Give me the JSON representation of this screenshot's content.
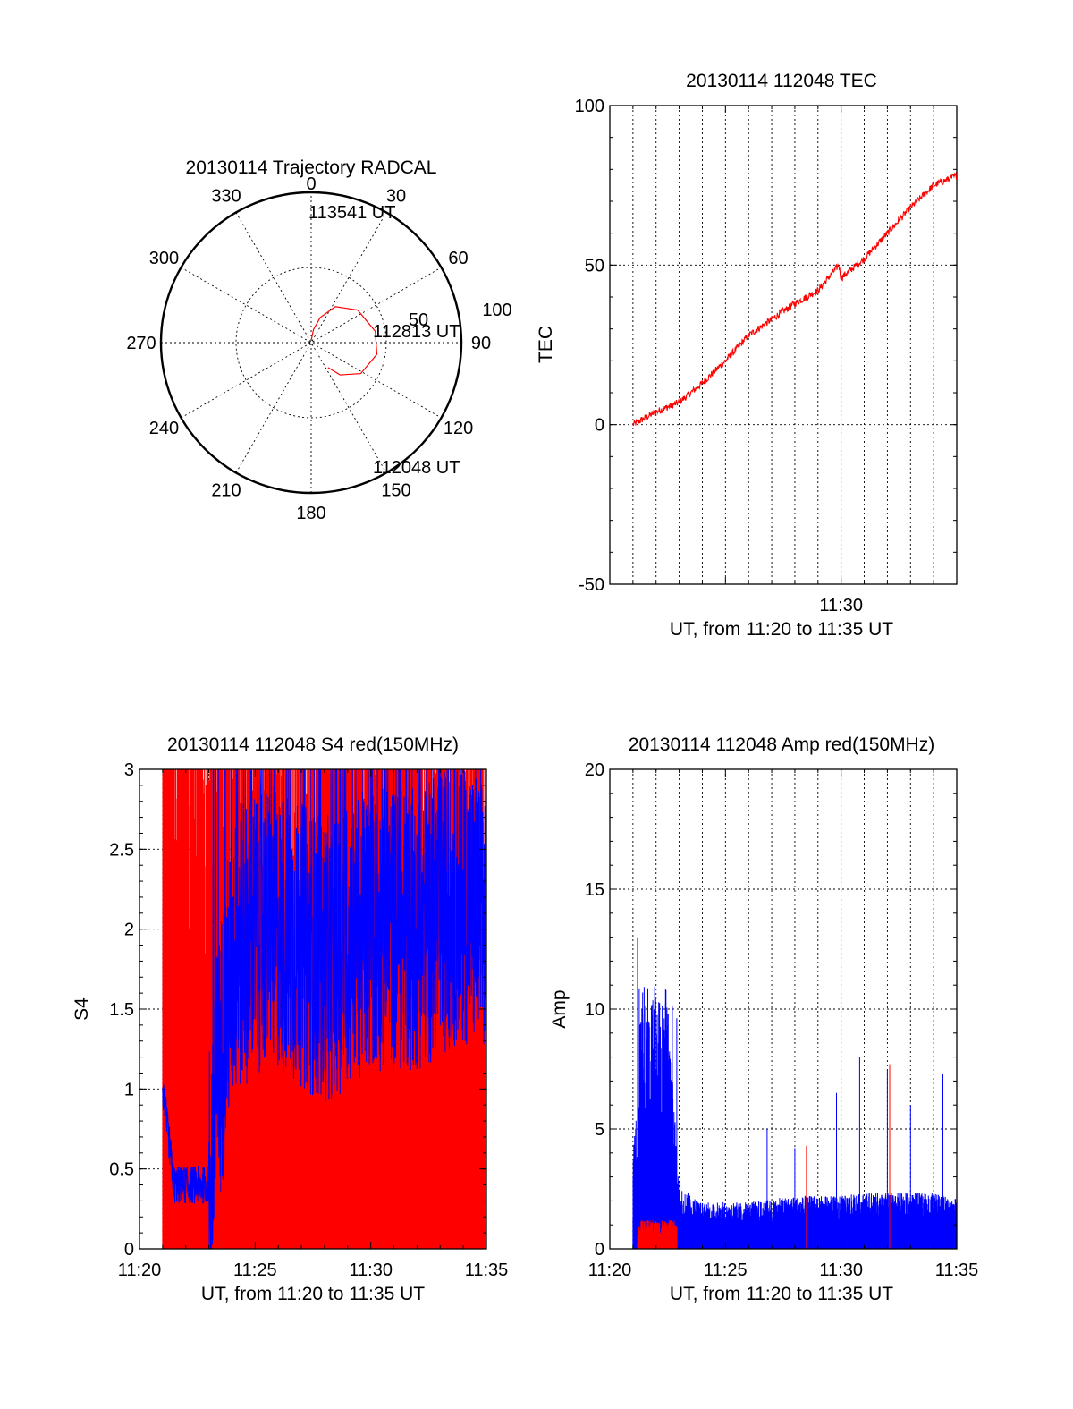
{
  "colors": {
    "red": "#ff0000",
    "blue": "#0000ff",
    "axis": "#000000"
  },
  "chart_data": [
    {
      "id": "trajectory",
      "type": "polar",
      "title": "20130114 Trajectory RADCAL",
      "azimuth_labels": [
        "0",
        "30",
        "60",
        "90",
        "120",
        "150",
        "180",
        "210",
        "240",
        "270",
        "300",
        "330"
      ],
      "radial_labels": [
        "50",
        "100"
      ],
      "rlim": [
        0,
        100
      ],
      "radial_rings": [
        50,
        100
      ],
      "series": [
        {
          "color": "#ff0000",
          "points": [
            {
              "az": 4,
              "el": 88
            },
            {
              "az": 10,
              "el": 82
            },
            {
              "az": 20,
              "el": 74
            },
            {
              "az": 34,
              "el": 64
            },
            {
              "az": 55,
              "el": 56
            },
            {
              "az": 80,
              "el": 51
            },
            {
              "az": 100,
              "el": 50
            },
            {
              "az": 122,
              "el": 55
            },
            {
              "az": 138,
              "el": 64
            },
            {
              "az": 146,
              "el": 72
            }
          ]
        }
      ],
      "annotations": [
        {
          "text": "113541 UT",
          "az": 2,
          "el": 86
        },
        {
          "text": "112813 UT",
          "az": 80,
          "el": 46
        },
        {
          "text": "112048 UT",
          "az": 148,
          "el": 70
        }
      ]
    },
    {
      "id": "tec",
      "type": "line",
      "title": "20130114 112048 TEC",
      "xlabel": "UT, from 11:20 to 11:35 UT",
      "ylabel": "TEC",
      "xlim": [
        "11:20",
        "11:35"
      ],
      "ylim": [
        -50,
        100
      ],
      "yticks": [
        -50,
        0,
        50,
        100
      ],
      "xtick_labels": [
        "11:30"
      ],
      "grid": "vertical dotted every 1 min",
      "series": [
        {
          "color": "#ff0000",
          "x": [
            "11:21",
            "11:22",
            "11:23",
            "11:24",
            "11:25",
            "11:26",
            "11:27",
            "11:28",
            "11:29",
            "11:29.9",
            "11:30",
            "11:31",
            "11:32",
            "11:33",
            "11:34",
            "11:35"
          ],
          "y": [
            0,
            4,
            7,
            13,
            20,
            28,
            33,
            38,
            42,
            50,
            46,
            52,
            60,
            68,
            75,
            78
          ]
        }
      ]
    },
    {
      "id": "s4",
      "type": "line",
      "title": "20130114 112048 S4 red(150MHz)",
      "xlabel": "UT, from 11:20 to 11:35 UT",
      "ylabel": "S4",
      "xlim": [
        "11:20",
        "11:35"
      ],
      "ylim": [
        0,
        3
      ],
      "yticks": [
        0,
        0.5,
        1,
        1.5,
        2,
        2.5,
        3
      ],
      "xtick_labels": [
        "11:20",
        "11:25",
        "11:30",
        "11:35"
      ],
      "grid": "dotted",
      "series": [
        {
          "color": "#ff0000",
          "note_range": [
            "11:21",
            "11:35"
          ],
          "min": 0,
          "max": 3
        },
        {
          "color": "#0000ff",
          "x": [
            "11:21",
            "11:21.5",
            "11:22",
            "11:22.5",
            "11:23",
            "11:23.5",
            "11:24",
            "11:25",
            "11:26",
            "11:27",
            "11:28",
            "11:29",
            "11:30",
            "11:31",
            "11:32",
            "11:33",
            "11:34",
            "11:35"
          ],
          "y": [
            1.0,
            0.4,
            0.4,
            0.4,
            0.4,
            1.2,
            1.8,
            2.0,
            2.0,
            1.9,
            1.8,
            1.9,
            2.0,
            2.0,
            2.0,
            2.1,
            2.2,
            2.0
          ]
        }
      ]
    },
    {
      "id": "amp",
      "type": "line",
      "title": "20130114 112048 Amp red(150MHz)",
      "xlabel": "UT, from 11:20 to 11:35 UT",
      "ylabel": "Amp",
      "xlim": [
        "11:20",
        "11:35"
      ],
      "ylim": [
        0,
        20
      ],
      "yticks": [
        0,
        5,
        10,
        15,
        20
      ],
      "xtick_labels": [
        "11:20",
        "11:25",
        "11:30",
        "11:35"
      ],
      "grid": "dotted",
      "series": [
        {
          "color": "#0000ff",
          "x": [
            "11:21",
            "11:21.5",
            "11:22",
            "11:22.5",
            "11:23",
            "11:24",
            "11:25",
            "11:26",
            "11:27",
            "11:28",
            "11:29",
            "11:30",
            "11:31",
            "11:32",
            "11:33",
            "11:34",
            "11:35"
          ],
          "y": [
            3,
            8,
            8,
            8,
            2,
            1.5,
            1.5,
            1.5,
            1.6,
            1.7,
            1.7,
            1.7,
            1.8,
            1.8,
            1.8,
            1.8,
            1.6
          ],
          "peaks": [
            {
              "x": "11:21.2",
              "y": 13
            },
            {
              "x": "11:22.3",
              "y": 15
            },
            {
              "x": "11:26.8",
              "y": 5
            },
            {
              "x": "11:28",
              "y": 4.2
            },
            {
              "x": "11:29.8",
              "y": 6.5
            },
            {
              "x": "11:30.8",
              "y": 8
            },
            {
              "x": "11:32",
              "y": 7.5
            },
            {
              "x": "11:33",
              "y": 6
            },
            {
              "x": "11:34.4",
              "y": 7.3
            }
          ]
        },
        {
          "color": "#ff0000",
          "x": [
            "11:21.2",
            "11:22.9"
          ],
          "y": [
            0.8,
            0.8
          ],
          "peaks": [
            {
              "x": "11:28.5",
              "y": 4.3
            },
            {
              "x": "11:32.1",
              "y": 7.7
            }
          ]
        }
      ]
    }
  ]
}
